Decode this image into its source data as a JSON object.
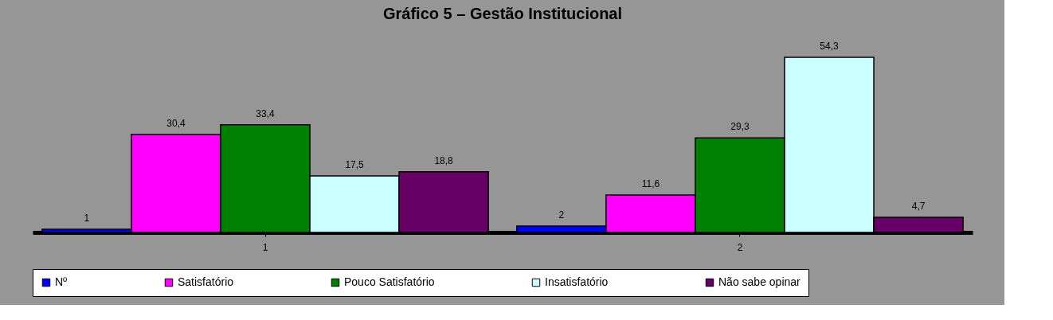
{
  "chart_data": {
    "type": "bar",
    "title": "Gráfico 5 – Gestão Institucional",
    "categories": [
      "1",
      "2"
    ],
    "series": [
      {
        "name": "Nº",
        "color": "#0000ff",
        "values": [
          1,
          2
        ],
        "value_labels": [
          "1",
          "2"
        ]
      },
      {
        "name": "Satisfatório",
        "color": "#ff00ff",
        "values": [
          30.4,
          11.6
        ],
        "value_labels": [
          "30,4",
          "11,6"
        ]
      },
      {
        "name": "Pouco Satisfatório",
        "color": "#008000",
        "values": [
          33.4,
          29.3
        ],
        "value_labels": [
          "33,4",
          "29,3"
        ]
      },
      {
        "name": "Insatisfatório",
        "color": "#ccffff",
        "values": [
          17.5,
          54.3
        ],
        "value_labels": [
          "17,5",
          "54,3"
        ]
      },
      {
        "name": "Não sabe opinar",
        "color": "#660066",
        "values": [
          18.8,
          4.7
        ],
        "value_labels": [
          "18,8",
          "4,7"
        ]
      }
    ],
    "legend": "bottom",
    "tick_labels": "x"
  }
}
